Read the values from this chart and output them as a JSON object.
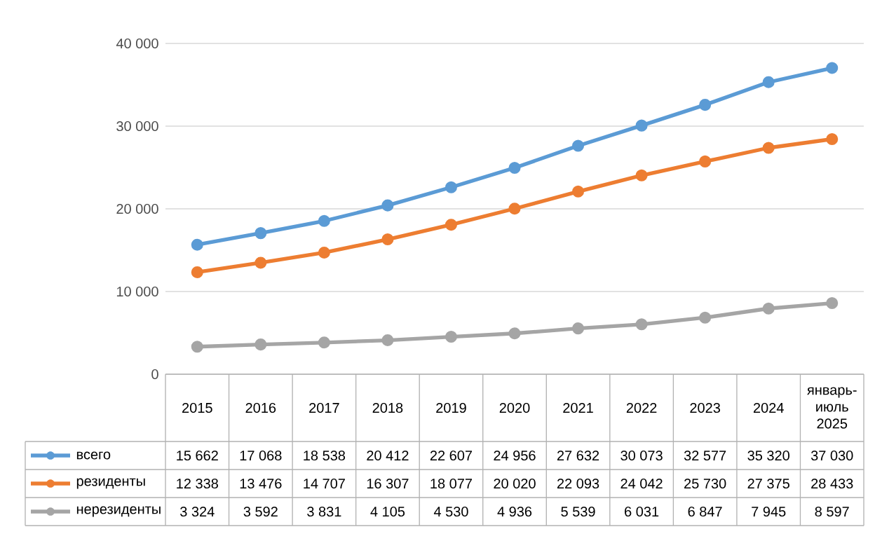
{
  "chart_data": {
    "type": "line",
    "categories": [
      "2015",
      "2016",
      "2017",
      "2018",
      "2019",
      "2020",
      "2021",
      "2022",
      "2023",
      "2024",
      "январь-июль 2025"
    ],
    "series": [
      {
        "name": "всего",
        "color": "#5b9bd5",
        "values": [
          15662,
          17068,
          18538,
          20412,
          22607,
          24956,
          27632,
          30073,
          32577,
          35320,
          37030
        ]
      },
      {
        "name": "резиденты",
        "color": "#ed7d31",
        "values": [
          12338,
          13476,
          14707,
          16307,
          18077,
          20020,
          22093,
          24042,
          25730,
          27375,
          28433
        ]
      },
      {
        "name": "нерезиденты",
        "color": "#a5a5a5",
        "values": [
          3324,
          3592,
          3831,
          4105,
          4530,
          4936,
          5539,
          6031,
          6847,
          7945,
          8597
        ]
      }
    ],
    "ylim": [
      0,
      40000
    ],
    "yticks": [
      0,
      {
        "value": 10000,
        "label": "10 000"
      },
      {
        "value": 20000,
        "label": "20 000"
      },
      {
        "value": 30000,
        "label": "30 000"
      },
      {
        "value": 40000,
        "label": "40 000"
      }
    ],
    "grid": "y",
    "legend": "bottom",
    "marker": "circle",
    "data_labels": true
  }
}
